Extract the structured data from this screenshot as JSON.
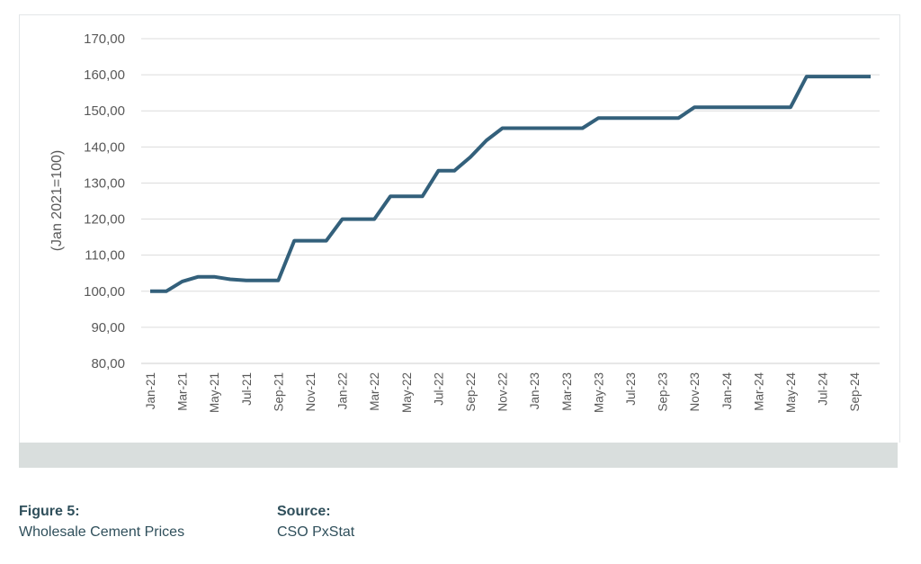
{
  "chart_data": {
    "type": "line",
    "ylabel": "(Jan 2021=100)",
    "ylim": [
      80,
      170
    ],
    "y_ticks": [
      "170,00",
      "160,00",
      "150,00",
      "140,00",
      "130,00",
      "120,00",
      "110,00",
      "100,00",
      "90,00",
      "80,00"
    ],
    "y_tick_values": [
      170,
      160,
      150,
      140,
      130,
      120,
      110,
      100,
      90,
      80
    ],
    "x_tick_labels": [
      "Jan-21",
      "Mar-21",
      "May-21",
      "Jul-21",
      "Sep-21",
      "Nov-21",
      "Jan-22",
      "Mar-22",
      "May-22",
      "Jul-22",
      "Sep-22",
      "Nov-22",
      "Jan-23",
      "Mar-23",
      "May-23",
      "Jul-23",
      "Sep-23",
      "Nov-23",
      "Jan-24",
      "Mar-24",
      "May-24",
      "Jul-24",
      "Sep-24"
    ],
    "x": [
      "Jan-21",
      "Feb-21",
      "Mar-21",
      "Apr-21",
      "May-21",
      "Jun-21",
      "Jul-21",
      "Aug-21",
      "Sep-21",
      "Oct-21",
      "Nov-21",
      "Dec-21",
      "Jan-22",
      "Feb-22",
      "Mar-22",
      "Apr-22",
      "May-22",
      "Jun-22",
      "Jul-22",
      "Aug-22",
      "Sep-22",
      "Oct-22",
      "Nov-22",
      "Dec-22",
      "Jan-23",
      "Feb-23",
      "Mar-23",
      "Apr-23",
      "May-23",
      "Jun-23",
      "Jul-23",
      "Aug-23",
      "Sep-23",
      "Oct-23",
      "Nov-23",
      "Dec-23",
      "Jan-24",
      "Feb-24",
      "Mar-24",
      "Apr-24",
      "May-24",
      "Jun-24",
      "Jul-24",
      "Aug-24",
      "Sep-24",
      "Oct-24"
    ],
    "series": [
      {
        "values": [
          100,
          100,
          102.7,
          104,
          104,
          103.3,
          103,
          103,
          103,
          114,
          114,
          114,
          120,
          120,
          120,
          126.3,
          126.3,
          126.3,
          133.4,
          133.4,
          137.2,
          141.8,
          145.2,
          145.2,
          145.2,
          145.2,
          145.2,
          145.2,
          148,
          148,
          148,
          148,
          148,
          148,
          151,
          151,
          151,
          151,
          151,
          151,
          151,
          159.5,
          159.5,
          159.5,
          159.5,
          159.5
        ],
        "color": "#33607b"
      }
    ],
    "grid": true
  },
  "caption": {
    "figure_label": "Figure 5:",
    "figure_title": "Wholesale Cement Prices",
    "source_label": "Source:",
    "source_text": "CSO PxStat"
  }
}
